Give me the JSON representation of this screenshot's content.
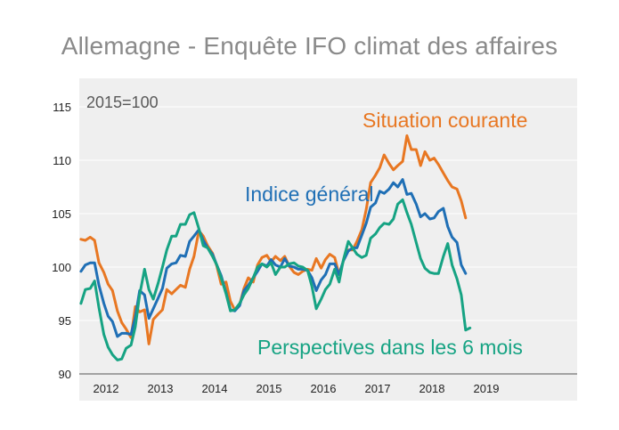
{
  "title": "Allemagne - Enquête IFO climat des affaires",
  "base_label": "2015=100",
  "colors": {
    "situation": "#e87722",
    "indice": "#1f6fb5",
    "perspectives": "#16a383",
    "plot_bg": "#efefef"
  },
  "chart_data": {
    "type": "line",
    "ylim": [
      90,
      115
    ],
    "yticks": [
      90,
      95,
      100,
      105,
      110,
      115
    ],
    "xlim": [
      2011.5,
      2019.25
    ],
    "xticks": [
      {
        "label": "2012",
        "x": 2012.0
      },
      {
        "label": "2013",
        "x": 2013.0
      },
      {
        "label": "2014",
        "x": 2014.0
      },
      {
        "label": "2015",
        "x": 2015.0
      },
      {
        "label": "2016",
        "x": 2016.0
      },
      {
        "label": "2017",
        "x": 2017.0
      },
      {
        "label": "2018",
        "x": 2018.0
      },
      {
        "label": "2019",
        "x": 2019.0
      }
    ],
    "series": [
      {
        "name": "Situation courante",
        "key": "situation",
        "points": [
          [
            2011.54,
            102.6
          ],
          [
            2011.62,
            102.5
          ],
          [
            2011.71,
            102.8
          ],
          [
            2011.79,
            102.5
          ],
          [
            2011.87,
            100.4
          ],
          [
            2011.96,
            99.5
          ],
          [
            2012.04,
            98.4
          ],
          [
            2012.12,
            97.8
          ],
          [
            2012.21,
            95.9
          ],
          [
            2012.29,
            94.8
          ],
          [
            2012.37,
            94.2
          ],
          [
            2012.46,
            93.4
          ],
          [
            2012.54,
            96.3
          ],
          [
            2012.62,
            95.8
          ],
          [
            2012.71,
            96.0
          ],
          [
            2012.79,
            92.8
          ],
          [
            2012.87,
            95.1
          ],
          [
            2012.96,
            95.6
          ],
          [
            2013.04,
            96.0
          ],
          [
            2013.12,
            97.9
          ],
          [
            2013.21,
            97.5
          ],
          [
            2013.29,
            97.9
          ],
          [
            2013.37,
            98.3
          ],
          [
            2013.46,
            98.1
          ],
          [
            2013.54,
            99.8
          ],
          [
            2013.62,
            101.0
          ],
          [
            2013.71,
            103.4
          ],
          [
            2013.79,
            102.9
          ],
          [
            2013.87,
            102.0
          ],
          [
            2013.96,
            101.3
          ],
          [
            2014.04,
            100.1
          ],
          [
            2014.12,
            98.4
          ],
          [
            2014.21,
            98.6
          ],
          [
            2014.29,
            96.8
          ],
          [
            2014.37,
            96.0
          ],
          [
            2014.46,
            96.5
          ],
          [
            2014.54,
            98.0
          ],
          [
            2014.62,
            99.0
          ],
          [
            2014.71,
            98.6
          ],
          [
            2014.79,
            100.2
          ],
          [
            2014.87,
            100.9
          ],
          [
            2014.96,
            101.1
          ],
          [
            2015.04,
            100.5
          ],
          [
            2015.12,
            101.0
          ],
          [
            2015.21,
            100.6
          ],
          [
            2015.29,
            101.0
          ],
          [
            2015.37,
            100.1
          ],
          [
            2015.46,
            99.5
          ],
          [
            2015.54,
            99.3
          ],
          [
            2015.62,
            99.6
          ],
          [
            2015.71,
            99.8
          ],
          [
            2015.79,
            99.7
          ],
          [
            2015.87,
            100.8
          ],
          [
            2015.96,
            99.9
          ],
          [
            2016.04,
            100.7
          ],
          [
            2016.12,
            101.2
          ],
          [
            2016.21,
            100.9
          ],
          [
            2016.29,
            99.3
          ],
          [
            2016.37,
            100.6
          ],
          [
            2016.46,
            101.6
          ],
          [
            2016.54,
            101.6
          ],
          [
            2016.62,
            102.4
          ],
          [
            2016.71,
            103.5
          ],
          [
            2016.79,
            105.4
          ],
          [
            2016.87,
            107.9
          ],
          [
            2016.96,
            108.6
          ],
          [
            2017.04,
            109.3
          ],
          [
            2017.12,
            110.5
          ],
          [
            2017.21,
            109.7
          ],
          [
            2017.29,
            109.1
          ],
          [
            2017.37,
            109.5
          ],
          [
            2017.46,
            109.9
          ],
          [
            2017.54,
            112.3
          ],
          [
            2017.62,
            111.0
          ],
          [
            2017.71,
            111.0
          ],
          [
            2017.79,
            109.5
          ],
          [
            2017.87,
            110.8
          ],
          [
            2017.96,
            110.0
          ],
          [
            2018.04,
            110.2
          ],
          [
            2018.12,
            109.6
          ],
          [
            2018.21,
            108.8
          ],
          [
            2018.29,
            108.1
          ],
          [
            2018.37,
            107.5
          ],
          [
            2018.46,
            107.3
          ],
          [
            2018.54,
            106.2
          ],
          [
            2018.62,
            104.6
          ]
        ]
      },
      {
        "name": "Indice général",
        "key": "indice",
        "points": [
          [
            2011.54,
            99.6
          ],
          [
            2011.62,
            100.2
          ],
          [
            2011.71,
            100.4
          ],
          [
            2011.79,
            100.4
          ],
          [
            2011.87,
            98.3
          ],
          [
            2011.96,
            96.6
          ],
          [
            2012.04,
            95.4
          ],
          [
            2012.12,
            94.9
          ],
          [
            2012.21,
            93.5
          ],
          [
            2012.29,
            93.8
          ],
          [
            2012.37,
            93.8
          ],
          [
            2012.46,
            93.7
          ],
          [
            2012.54,
            95.3
          ],
          [
            2012.62,
            97.8
          ],
          [
            2012.71,
            97.4
          ],
          [
            2012.79,
            95.2
          ],
          [
            2012.87,
            96.1
          ],
          [
            2012.96,
            97.1
          ],
          [
            2013.04,
            98.0
          ],
          [
            2013.12,
            99.9
          ],
          [
            2013.21,
            100.3
          ],
          [
            2013.29,
            100.4
          ],
          [
            2013.37,
            101.1
          ],
          [
            2013.46,
            101.0
          ],
          [
            2013.54,
            102.4
          ],
          [
            2013.62,
            102.9
          ],
          [
            2013.71,
            103.5
          ],
          [
            2013.79,
            102.5
          ],
          [
            2013.87,
            101.8
          ],
          [
            2013.96,
            101.2
          ],
          [
            2014.04,
            100.2
          ],
          [
            2014.12,
            99.2
          ],
          [
            2014.21,
            97.6
          ],
          [
            2014.29,
            96.0
          ],
          [
            2014.37,
            95.9
          ],
          [
            2014.46,
            96.4
          ],
          [
            2014.54,
            97.8
          ],
          [
            2014.62,
            98.3
          ],
          [
            2014.71,
            99.0
          ],
          [
            2014.79,
            99.6
          ],
          [
            2014.87,
            100.3
          ],
          [
            2014.96,
            100.1
          ],
          [
            2015.04,
            100.7
          ],
          [
            2015.12,
            100.2
          ],
          [
            2015.21,
            100.0
          ],
          [
            2015.29,
            100.8
          ],
          [
            2015.37,
            100.1
          ],
          [
            2015.46,
            100.0
          ],
          [
            2015.54,
            99.8
          ],
          [
            2015.62,
            99.8
          ],
          [
            2015.71,
            99.7
          ],
          [
            2015.79,
            99.0
          ],
          [
            2015.87,
            97.8
          ],
          [
            2015.96,
            98.8
          ],
          [
            2016.04,
            99.3
          ],
          [
            2016.12,
            100.3
          ],
          [
            2016.21,
            100.3
          ],
          [
            2016.29,
            99.3
          ],
          [
            2016.37,
            100.6
          ],
          [
            2016.46,
            101.5
          ],
          [
            2016.54,
            101.8
          ],
          [
            2016.62,
            101.8
          ],
          [
            2016.71,
            103.0
          ],
          [
            2016.79,
            104.1
          ],
          [
            2016.87,
            105.6
          ],
          [
            2016.96,
            106.0
          ],
          [
            2017.04,
            107.1
          ],
          [
            2017.12,
            106.9
          ],
          [
            2017.21,
            107.3
          ],
          [
            2017.29,
            107.9
          ],
          [
            2017.37,
            107.5
          ],
          [
            2017.46,
            108.2
          ],
          [
            2017.54,
            106.8
          ],
          [
            2017.62,
            106.9
          ],
          [
            2017.71,
            105.9
          ],
          [
            2017.79,
            104.7
          ],
          [
            2017.87,
            105.0
          ],
          [
            2017.96,
            104.5
          ],
          [
            2018.04,
            104.6
          ],
          [
            2018.12,
            105.2
          ],
          [
            2018.21,
            105.5
          ],
          [
            2018.29,
            103.8
          ],
          [
            2018.37,
            102.8
          ],
          [
            2018.46,
            102.3
          ],
          [
            2018.54,
            100.2
          ],
          [
            2018.62,
            99.4
          ]
        ]
      },
      {
        "name": "Perspectives dans les 6 mois",
        "key": "perspectives",
        "points": [
          [
            2011.54,
            96.6
          ],
          [
            2011.62,
            97.9
          ],
          [
            2011.71,
            98.0
          ],
          [
            2011.79,
            98.7
          ],
          [
            2011.87,
            96.2
          ],
          [
            2011.96,
            93.7
          ],
          [
            2012.04,
            92.5
          ],
          [
            2012.12,
            91.8
          ],
          [
            2012.21,
            91.3
          ],
          [
            2012.29,
            91.4
          ],
          [
            2012.37,
            92.4
          ],
          [
            2012.46,
            92.7
          ],
          [
            2012.54,
            94.4
          ],
          [
            2012.62,
            97.4
          ],
          [
            2012.71,
            99.8
          ],
          [
            2012.79,
            97.9
          ],
          [
            2012.87,
            97.0
          ],
          [
            2012.96,
            98.5
          ],
          [
            2013.04,
            100.0
          ],
          [
            2013.12,
            101.6
          ],
          [
            2013.21,
            102.9
          ],
          [
            2013.29,
            102.9
          ],
          [
            2013.37,
            104.0
          ],
          [
            2013.46,
            104.0
          ],
          [
            2013.54,
            104.9
          ],
          [
            2013.62,
            105.1
          ],
          [
            2013.71,
            103.6
          ],
          [
            2013.79,
            102.0
          ],
          [
            2013.87,
            101.8
          ],
          [
            2013.96,
            101.0
          ],
          [
            2014.04,
            100.2
          ],
          [
            2014.12,
            99.0
          ],
          [
            2014.21,
            97.5
          ],
          [
            2014.29,
            95.9
          ],
          [
            2014.37,
            96.0
          ],
          [
            2014.46,
            96.6
          ],
          [
            2014.54,
            97.4
          ],
          [
            2014.62,
            98.0
          ],
          [
            2014.71,
            99.0
          ],
          [
            2014.79,
            100.0
          ],
          [
            2014.87,
            100.3
          ],
          [
            2014.96,
            100.0
          ],
          [
            2015.04,
            100.4
          ],
          [
            2015.12,
            99.3
          ],
          [
            2015.21,
            100.0
          ],
          [
            2015.29,
            100.0
          ],
          [
            2015.37,
            100.3
          ],
          [
            2015.46,
            100.4
          ],
          [
            2015.54,
            100.1
          ],
          [
            2015.62,
            100.0
          ],
          [
            2015.71,
            99.7
          ],
          [
            2015.79,
            98.2
          ],
          [
            2015.87,
            96.1
          ],
          [
            2015.96,
            97.0
          ],
          [
            2016.04,
            97.9
          ],
          [
            2016.12,
            98.4
          ],
          [
            2016.21,
            99.8
          ],
          [
            2016.29,
            98.6
          ],
          [
            2016.37,
            100.7
          ],
          [
            2016.46,
            102.4
          ],
          [
            2016.54,
            101.8
          ],
          [
            2016.62,
            101.2
          ],
          [
            2016.71,
            100.9
          ],
          [
            2016.79,
            101.1
          ],
          [
            2016.87,
            102.7
          ],
          [
            2016.96,
            103.1
          ],
          [
            2017.04,
            103.7
          ],
          [
            2017.12,
            104.1
          ],
          [
            2017.21,
            104.0
          ],
          [
            2017.29,
            104.5
          ],
          [
            2017.37,
            105.9
          ],
          [
            2017.46,
            106.3
          ],
          [
            2017.54,
            105.1
          ],
          [
            2017.62,
            104.0
          ],
          [
            2017.71,
            102.3
          ],
          [
            2017.79,
            100.8
          ],
          [
            2017.87,
            99.9
          ],
          [
            2017.96,
            99.5
          ],
          [
            2018.04,
            99.4
          ],
          [
            2018.12,
            99.4
          ],
          [
            2018.21,
            101.0
          ],
          [
            2018.29,
            102.2
          ],
          [
            2018.37,
            100.2
          ],
          [
            2018.46,
            98.9
          ],
          [
            2018.54,
            97.4
          ],
          [
            2018.62,
            94.1
          ],
          [
            2018.7,
            94.3
          ]
        ]
      }
    ]
  }
}
